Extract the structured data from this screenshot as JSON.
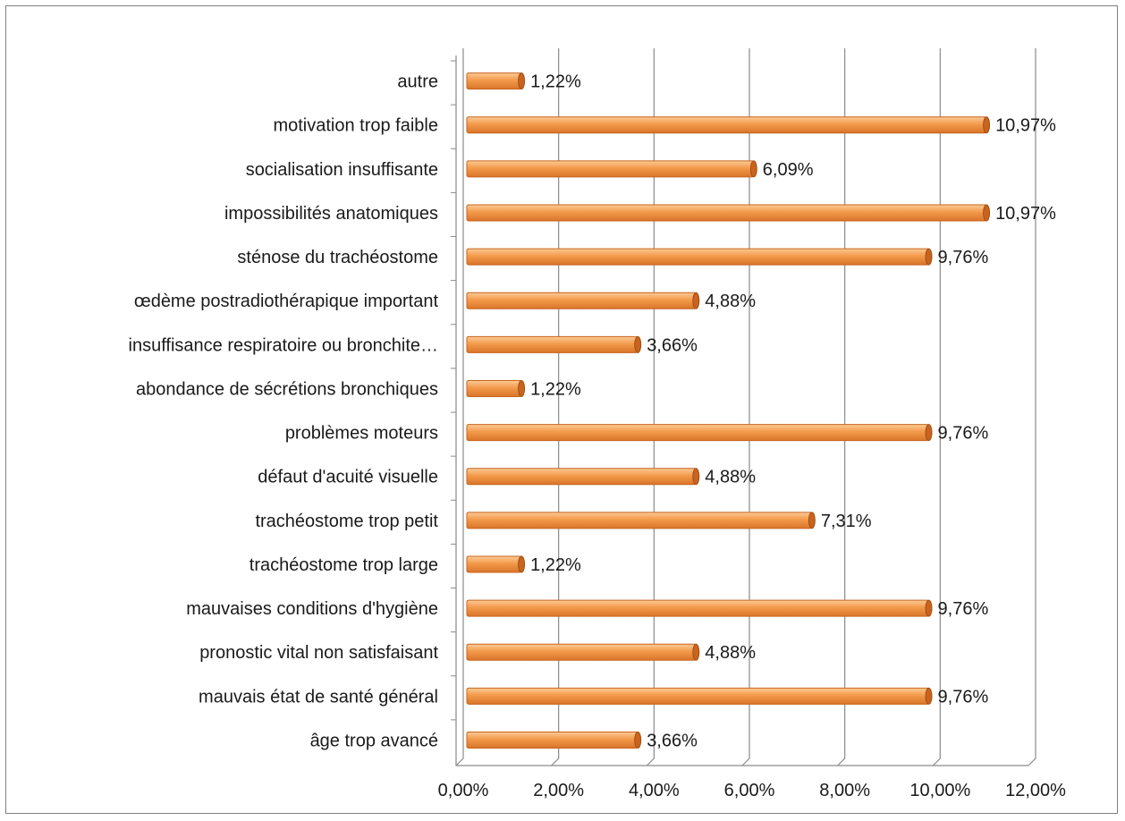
{
  "chart_data": {
    "type": "bar",
    "orientation": "horizontal",
    "title": "",
    "xlabel": "",
    "ylabel": "",
    "xlim": [
      0,
      12
    ],
    "grid": true,
    "legend": "none",
    "bar_color": "#F39A4B",
    "bar_edge_color": "#C8641E",
    "x_ticks": [
      "0,00%",
      "2,00%",
      "4,00%",
      "6,00%",
      "8,00%",
      "10,00%",
      "12,00%"
    ],
    "categories": [
      "autre",
      "motivation trop faible",
      "socialisation insuffisante",
      "impossibilités anatomiques",
      "sténose du trachéostome",
      "œdème postradiothérapique important",
      "insuffisance respiratoire ou bronchite…",
      "abondance de sécrétions bronchiques",
      "problèmes moteurs",
      "défaut d'acuité visuelle",
      "trachéostome trop petit",
      "trachéostome trop large",
      "mauvaises conditions d'hygiène",
      "pronostic vital non satisfaisant",
      "mauvais état de santé général",
      "âge trop avancé"
    ],
    "values": [
      1.22,
      10.97,
      6.09,
      10.97,
      9.76,
      4.88,
      3.66,
      1.22,
      9.76,
      4.88,
      7.31,
      1.22,
      9.76,
      4.88,
      9.76,
      3.66
    ],
    "value_labels": [
      "1,22%",
      "10,97%",
      "6,09%",
      "10,97%",
      "9,76%",
      "4,88%",
      "3,66%",
      "1,22%",
      "9,76%",
      "4,88%",
      "7,31%",
      "1,22%",
      "9,76%",
      "4,88%",
      "9,76%",
      "3,66%"
    ]
  }
}
